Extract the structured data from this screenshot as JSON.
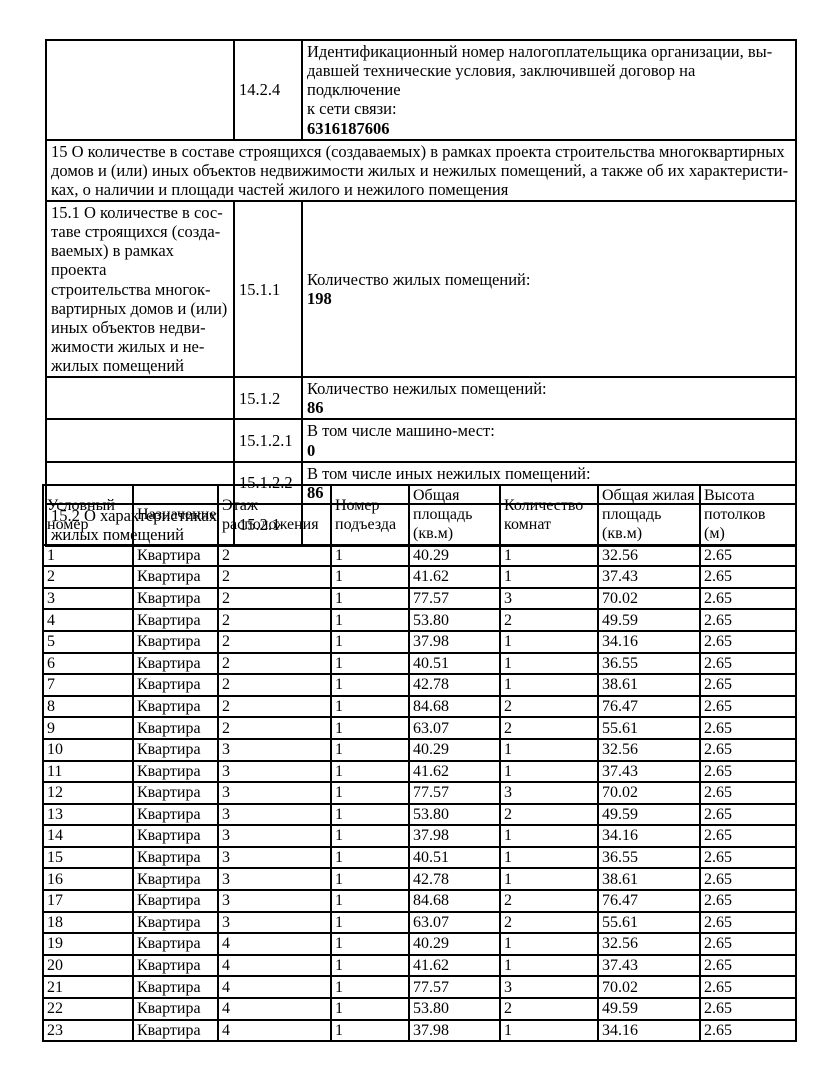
{
  "page": {
    "background": "#ffffff",
    "border_color": "#000000",
    "text_color": "#000000"
  },
  "info": {
    "r14_2_4": {
      "num": "14.2.4",
      "label": "Идентификационный номер налогоплательщика организации, вы-\nдавшей технические условия, заключившей договор на подключение\nк сети связи:",
      "value": "6316187606"
    },
    "r15": {
      "text": "15 О количестве в составе строящихся (создаваемых) в рамках проекта строительства многоквартирных\nдомов и (или) иных объектов недвижимости жилых и нежилых помещений, а также об их характеристи-\nках, о наличии и площади частей жилого и нежилого помещения"
    },
    "r15_1": {
      "left": "15.1 О количестве в сос-\nтаве строящихся (созда-\nваемых) в рамках проекта\nстроительства многок-\nвартирных домов и (или)\nиных объектов недви-\nжимости жилых и не-\nжилых помещений",
      "num": "15.1.1",
      "label": "Количество жилых помещений:",
      "value": "198"
    },
    "r15_1_2": {
      "num": "15.1.2",
      "label": "Количество нежилых помещений:",
      "value": "86"
    },
    "r15_1_2_1": {
      "num": "15.1.2.1",
      "label": "В том числе машино-мест:",
      "value": "0"
    },
    "r15_1_2_2": {
      "num": "15.1.2.2",
      "label": "В том числе иных нежилых помещений:",
      "value": "86"
    },
    "r15_2": {
      "left": "15.2 О характеристиках\nжилых помещений",
      "num": "15.2.1",
      "value": ""
    }
  },
  "apartments": {
    "columns": [
      "Условный\nномер",
      "Назначение",
      "Этаж\nрасположения",
      "Номер\nподъезда",
      "Общая\nплощадь\n(кв.м)",
      "Количество\nкомнат",
      "Общая жилая\nплощадь\n(кв.м)",
      "Высота\nпотолков\n(м)"
    ],
    "rows": [
      [
        "1",
        "Квартира",
        "2",
        "1",
        "40.29",
        "1",
        "32.56",
        "2.65"
      ],
      [
        "2",
        "Квартира",
        "2",
        "1",
        "41.62",
        "1",
        "37.43",
        "2.65"
      ],
      [
        "3",
        "Квартира",
        "2",
        "1",
        "77.57",
        "3",
        "70.02",
        "2.65"
      ],
      [
        "4",
        "Квартира",
        "2",
        "1",
        "53.80",
        "2",
        "49.59",
        "2.65"
      ],
      [
        "5",
        "Квартира",
        "2",
        "1",
        "37.98",
        "1",
        "34.16",
        "2.65"
      ],
      [
        "6",
        "Квартира",
        "2",
        "1",
        "40.51",
        "1",
        "36.55",
        "2.65"
      ],
      [
        "7",
        "Квартира",
        "2",
        "1",
        "42.78",
        "1",
        "38.61",
        "2.65"
      ],
      [
        "8",
        "Квартира",
        "2",
        "1",
        "84.68",
        "2",
        "76.47",
        "2.65"
      ],
      [
        "9",
        "Квартира",
        "2",
        "1",
        "63.07",
        "2",
        "55.61",
        "2.65"
      ],
      [
        "10",
        "Квартира",
        "3",
        "1",
        "40.29",
        "1",
        "32.56",
        "2.65"
      ],
      [
        "11",
        "Квартира",
        "3",
        "1",
        "41.62",
        "1",
        "37.43",
        "2.65"
      ],
      [
        "12",
        "Квартира",
        "3",
        "1",
        "77.57",
        "3",
        "70.02",
        "2.65"
      ],
      [
        "13",
        "Квартира",
        "3",
        "1",
        "53.80",
        "2",
        "49.59",
        "2.65"
      ],
      [
        "14",
        "Квартира",
        "3",
        "1",
        "37.98",
        "1",
        "34.16",
        "2.65"
      ],
      [
        "15",
        "Квартира",
        "3",
        "1",
        "40.51",
        "1",
        "36.55",
        "2.65"
      ],
      [
        "16",
        "Квартира",
        "3",
        "1",
        "42.78",
        "1",
        "38.61",
        "2.65"
      ],
      [
        "17",
        "Квартира",
        "3",
        "1",
        "84.68",
        "2",
        "76.47",
        "2.65"
      ],
      [
        "18",
        "Квартира",
        "3",
        "1",
        "63.07",
        "2",
        "55.61",
        "2.65"
      ],
      [
        "19",
        "Квартира",
        "4",
        "1",
        "40.29",
        "1",
        "32.56",
        "2.65"
      ],
      [
        "20",
        "Квартира",
        "4",
        "1",
        "41.62",
        "1",
        "37.43",
        "2.65"
      ],
      [
        "21",
        "Квартира",
        "4",
        "1",
        "77.57",
        "3",
        "70.02",
        "2.65"
      ],
      [
        "22",
        "Квартира",
        "4",
        "1",
        "53.80",
        "2",
        "49.59",
        "2.65"
      ],
      [
        "23",
        "Квартира",
        "4",
        "1",
        "37.98",
        "1",
        "34.16",
        "2.65"
      ]
    ]
  }
}
